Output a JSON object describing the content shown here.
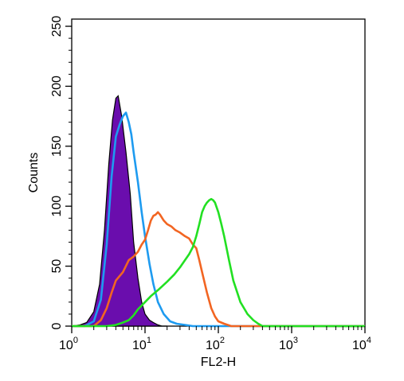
{
  "chart_data": {
    "type": "line",
    "title": "",
    "xlabel": "FL2-H",
    "ylabel": "Counts",
    "x_scale": "log",
    "xlim": [
      1,
      10000
    ],
    "ylim": [
      0,
      256
    ],
    "grid": false,
    "x_ticks": [
      {
        "base": "10",
        "exp": "0",
        "value": 1
      },
      {
        "base": "10",
        "exp": "1",
        "value": 10
      },
      {
        "base": "10",
        "exp": "2",
        "value": 100
      },
      {
        "base": "10",
        "exp": "3",
        "value": 1000
      },
      {
        "base": "10",
        "exp": "4",
        "value": 10000
      }
    ],
    "y_ticks": [
      "0",
      "50",
      "100",
      "150",
      "200",
      "250"
    ],
    "series": [
      {
        "color": "#000000",
        "fill": "#6a0dad",
        "filled": true,
        "x": [
          1.0,
          1.3,
          1.6,
          2.0,
          2.4,
          2.8,
          3.2,
          3.6,
          4.0,
          4.3,
          4.8,
          5.5,
          6.3,
          7.0,
          8.0,
          9.0,
          10.0,
          11.5,
          13.0,
          15.0,
          17.0,
          20.0
        ],
        "y": [
          0,
          1,
          3,
          12,
          35,
          80,
          135,
          172,
          190,
          192,
          175,
          145,
          110,
          70,
          40,
          20,
          10,
          5,
          3,
          1,
          0,
          0
        ]
      },
      {
        "color": "#1e9bf0",
        "filled": false,
        "x": [
          1.0,
          1.5,
          2.0,
          2.5,
          3.0,
          3.5,
          4.0,
          4.5,
          5.0,
          5.5,
          6.0,
          6.5,
          7.0,
          8.0,
          9.0,
          10.0,
          11.5,
          13.0,
          15.0,
          18.0,
          22.0,
          27.0,
          35.0,
          45.0,
          100.0,
          1000.0,
          10000.0
        ],
        "y": [
          0,
          0,
          4,
          22,
          68,
          125,
          158,
          168,
          175,
          178,
          170,
          160,
          145,
          120,
          95,
          75,
          52,
          35,
          20,
          10,
          4,
          2,
          1,
          0,
          0,
          0,
          0
        ]
      },
      {
        "color": "#f26522",
        "filled": false,
        "x": [
          1.0,
          2.0,
          2.5,
          3.0,
          3.5,
          4.0,
          5.0,
          6.0,
          7.0,
          8.0,
          9.0,
          10.0,
          11.0,
          12.0,
          13.0,
          14.0,
          15.0,
          16.0,
          18.0,
          20.0,
          23.0,
          26.0,
          30.0,
          35.0,
          40.0,
          45.0,
          50.0,
          55.0,
          60.0,
          70.0,
          80.0,
          90.0,
          100.0,
          120.0,
          150.0,
          10000.0
        ],
        "y": [
          0,
          0,
          5,
          15,
          28,
          38,
          45,
          55,
          58,
          62,
          68,
          72,
          80,
          88,
          92,
          93,
          95,
          93,
          88,
          85,
          83,
          80,
          78,
          75,
          73,
          68,
          65,
          55,
          45,
          28,
          15,
          8,
          4,
          2,
          0,
          0
        ]
      },
      {
        "color": "#22e022",
        "filled": false,
        "x": [
          1.0,
          3.0,
          4.0,
          5.0,
          6.0,
          7.0,
          8.0,
          10.0,
          12.0,
          15.0,
          20.0,
          25.0,
          30.0,
          35.0,
          40.0,
          45.0,
          50.0,
          55.0,
          60.0,
          65.0,
          70.0,
          75.0,
          80.0,
          85.0,
          90.0,
          100.0,
          110.0,
          120.0,
          140.0,
          160.0,
          200.0,
          250.0,
          300.0,
          350.0,
          400.0,
          10000.0
        ],
        "y": [
          0,
          0,
          1,
          3,
          5,
          9,
          14,
          20,
          25,
          30,
          37,
          43,
          49,
          55,
          60,
          66,
          75,
          85,
          95,
          100,
          103,
          105,
          106,
          105,
          103,
          95,
          85,
          75,
          55,
          38,
          20,
          10,
          5,
          2,
          0,
          0
        ]
      }
    ]
  }
}
